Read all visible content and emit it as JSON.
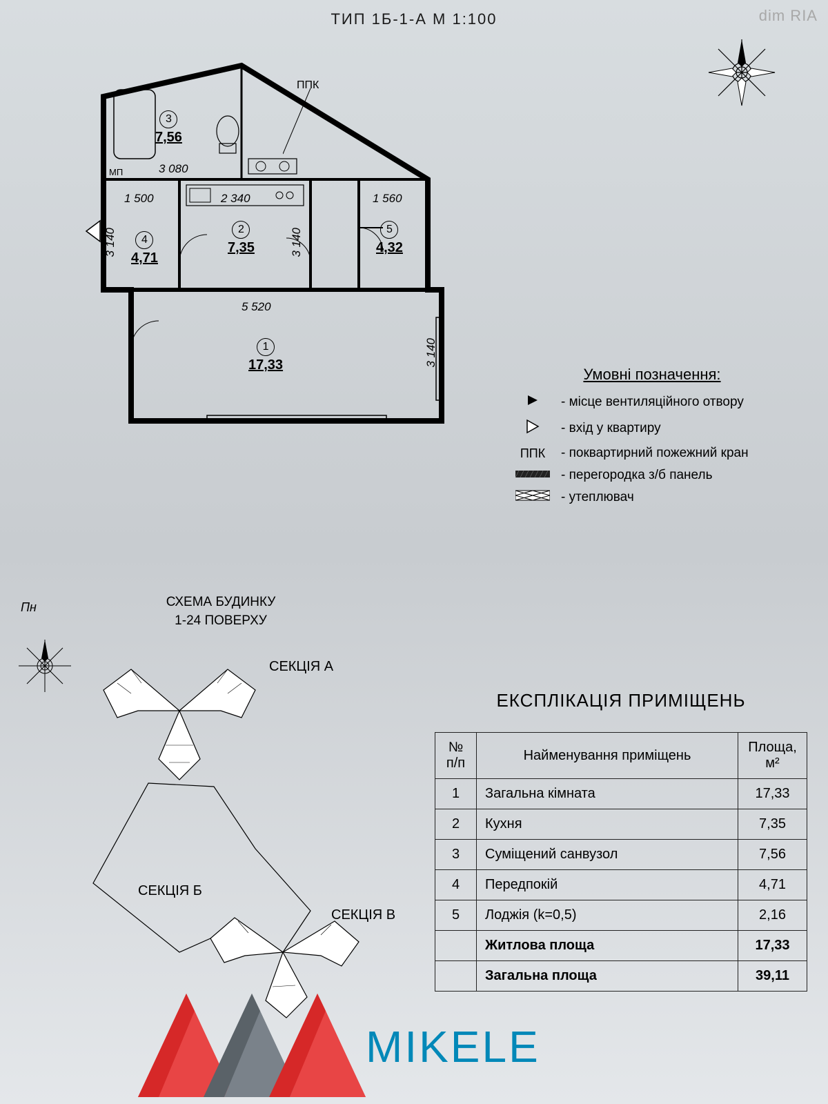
{
  "watermark": "dim RIA",
  "title": "ТИП 1Б-1-А   М 1:100",
  "rooms": [
    {
      "num": "1",
      "area": "17,33"
    },
    {
      "num": "2",
      "area": "7,35"
    },
    {
      "num": "3",
      "area": "7,56"
    },
    {
      "num": "4",
      "area": "4,71"
    },
    {
      "num": "5",
      "area": "4,32"
    }
  ],
  "dims": {
    "d3080": "3 080",
    "d1500": "1 500",
    "d2340": "2 340",
    "d1560": "1 560",
    "d5520": "5 520",
    "d3140a": "3 140",
    "d3140b": "3 140",
    "d3140c": "3 140"
  },
  "labels": {
    "ppk": "ППК",
    "mp": "МП"
  },
  "legend": {
    "title": "Умовні позначення:",
    "items": [
      {
        "sym": "vent",
        "text": "- місце вентиляційного отвору"
      },
      {
        "sym": "entry",
        "text": "- вхід у квартиру"
      },
      {
        "sym": "ppk",
        "text": "- поквартирний пожежний кран"
      },
      {
        "sym": "wall",
        "text": "- перегородка з/б панель"
      },
      {
        "sym": "insul",
        "text": "- утеплювач"
      }
    ]
  },
  "schema": {
    "title_line1": "СХЕМА БУДИНКУ",
    "title_line2": "1-24 ПОВЕРХУ",
    "pn": "Пн",
    "sections": {
      "a": "СЕКЦІЯ  А",
      "b": "СЕКЦІЯ  Б",
      "v": "СЕКЦІЯ  В"
    }
  },
  "explication": {
    "title": "ЕКСПЛІКАЦІЯ ПРИМІЩЕНЬ",
    "headers": {
      "num": "№ п/п",
      "name": "Найменування приміщень",
      "area": "Площа, м²"
    },
    "rows": [
      {
        "num": "1",
        "name": "Загальна кімната",
        "area": "17,33"
      },
      {
        "num": "2",
        "name": "Кухня",
        "area": "7,35"
      },
      {
        "num": "3",
        "name": "Суміщений санвузол",
        "area": "7,56"
      },
      {
        "num": "4",
        "name": "Передпокій",
        "area": "4,71"
      },
      {
        "num": "5",
        "name": "Лоджія (k=0,5)",
        "area": "2,16"
      }
    ],
    "totals": [
      {
        "name": "Житлова площа",
        "area": "17,33"
      },
      {
        "name": "Загальна площа",
        "area": "39,11"
      }
    ]
  },
  "logo": {
    "text": "MIKELE",
    "red": "#d62828",
    "gray": "#5a6268",
    "blue": "#0288b8"
  },
  "colors": {
    "stroke": "#111",
    "bg": "#d4d9dc",
    "hatch": "#333"
  }
}
